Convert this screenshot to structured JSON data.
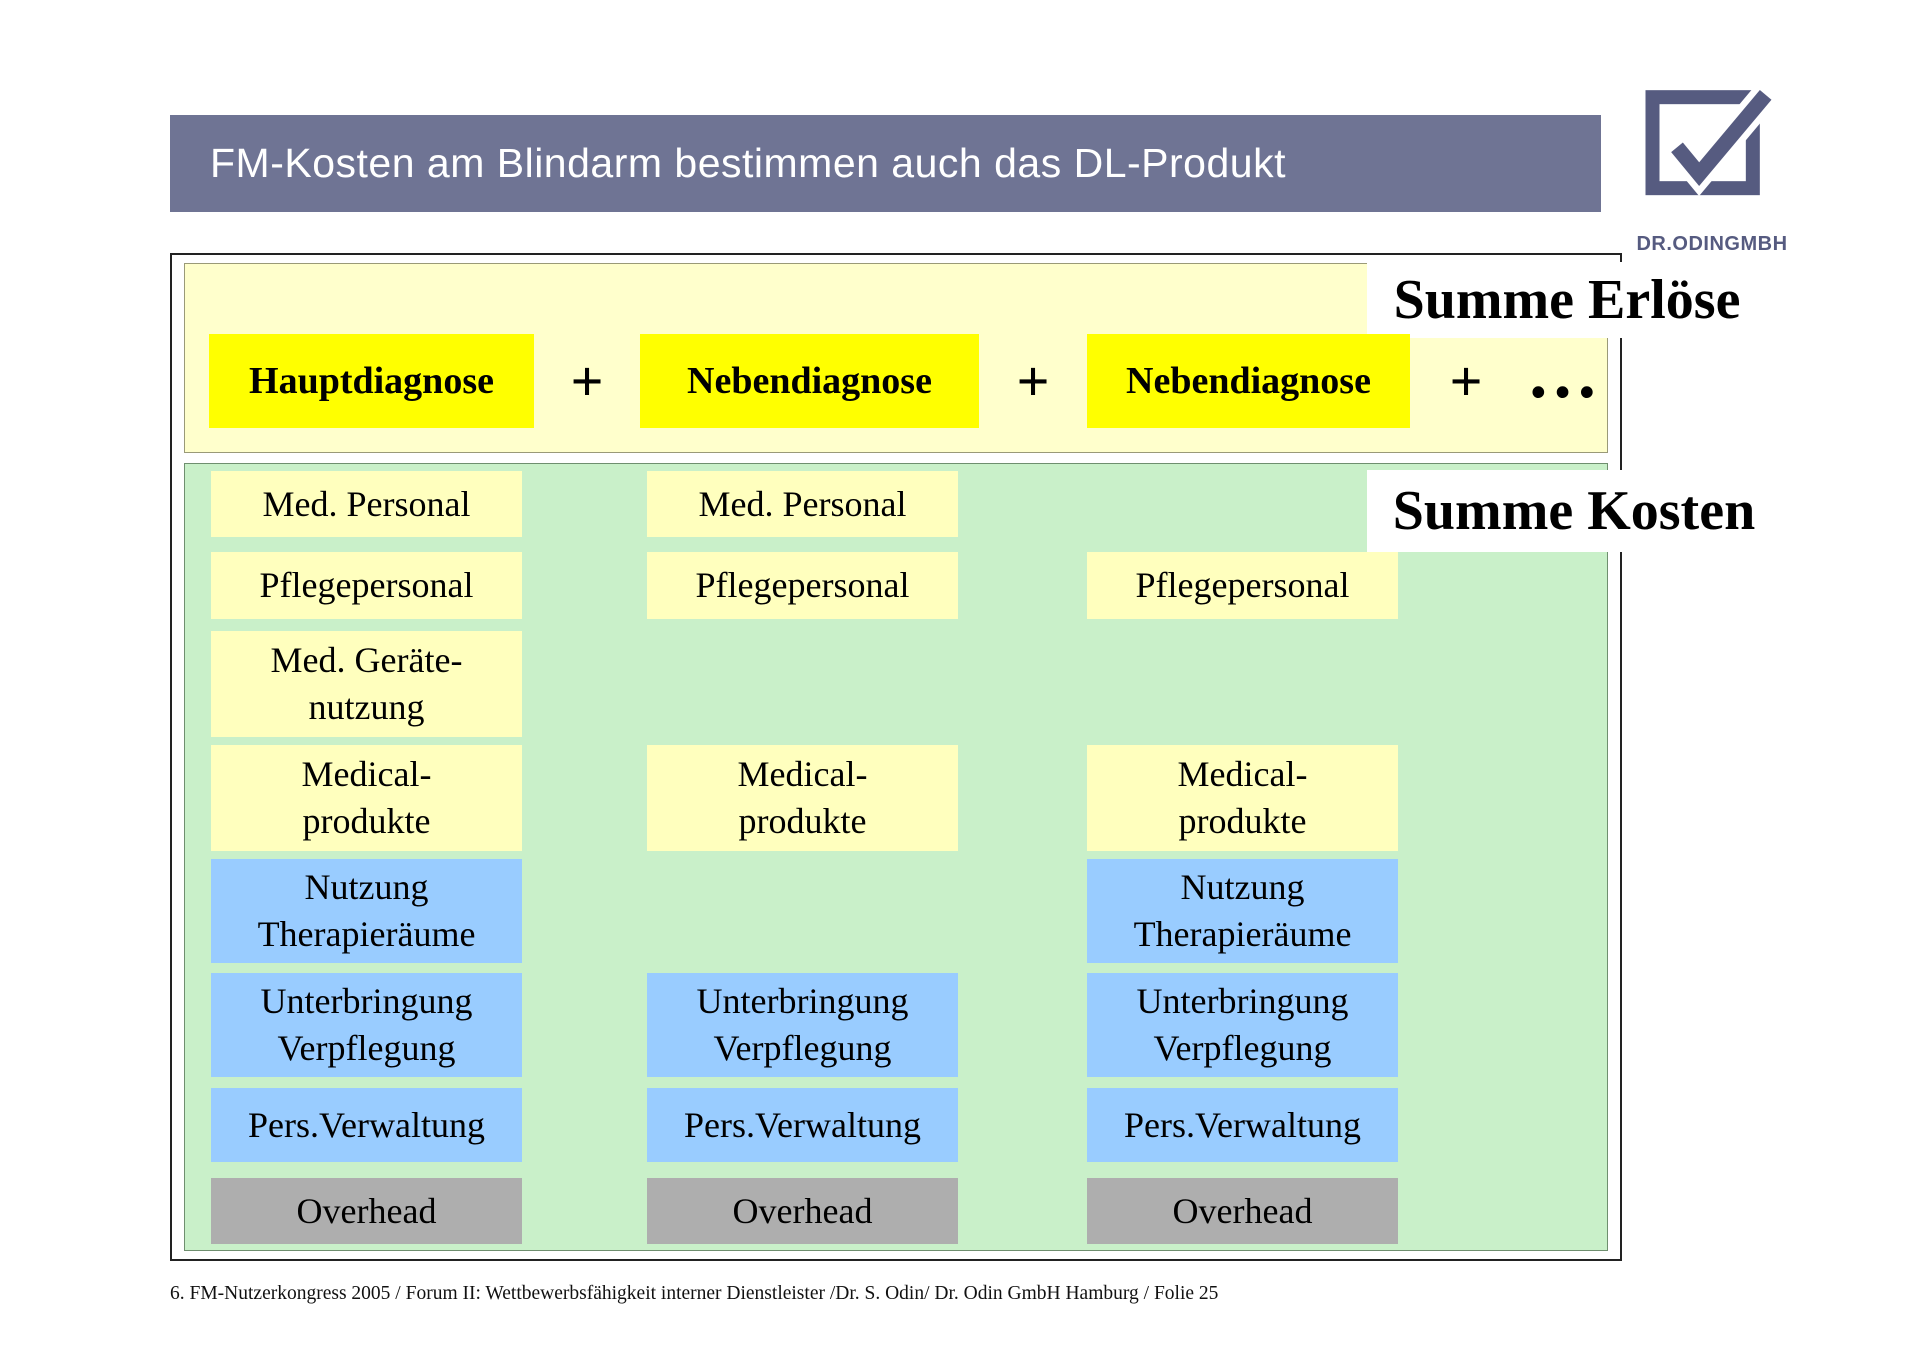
{
  "slide": {
    "title": "FM-Kosten am Blindarm bestimmen auch das DL-Produkt",
    "footer": "6. FM-Nutzerkongress 2005 / Forum II: Wettbewerbsfähigkeit interner Dienstleister /Dr. S. Odin/ Dr. Odin GmbH Hamburg / Folie 25"
  },
  "logo": {
    "icon": "checkmark-square-icon",
    "text": "DR.ODINGMBH"
  },
  "revenue": {
    "summary_label": "Summe Erlöse",
    "plus": "+",
    "ellipsis": "…",
    "diagnoses": [
      {
        "label": "Hauptdiagnose"
      },
      {
        "label": "Nebendiagnose"
      },
      {
        "label": "Nebendiagnose"
      }
    ]
  },
  "costs": {
    "summary_label": "Summe Kosten",
    "columns": [
      {
        "blocks": [
          {
            "lines": [
              "Med. Personal"
            ],
            "category": "yellow"
          },
          {
            "lines": [
              "Pflegepersonal"
            ],
            "category": "yellow"
          },
          {
            "lines": [
              "Med. Geräte-",
              "nutzung"
            ],
            "category": "yellow"
          },
          {
            "lines": [
              "Medical-",
              "produkte"
            ],
            "category": "yellow"
          },
          {
            "lines": [
              "Nutzung",
              "Therapieräume"
            ],
            "category": "blue"
          },
          {
            "lines": [
              "Unterbringung",
              "Verpflegung"
            ],
            "category": "blue"
          },
          {
            "lines": [
              "Pers.Verwaltung"
            ],
            "category": "blue"
          },
          {
            "lines": [
              "Overhead"
            ],
            "category": "gray"
          }
        ]
      },
      {
        "blocks": [
          {
            "lines": [
              "Med. Personal"
            ],
            "category": "yellow"
          },
          {
            "lines": [
              "Pflegepersonal"
            ],
            "category": "yellow"
          },
          {
            "lines": [
              "Medical-",
              "produkte"
            ],
            "category": "yellow"
          },
          {
            "lines": [
              "Unterbringung",
              "Verpflegung"
            ],
            "category": "blue"
          },
          {
            "lines": [
              "Pers.Verwaltung"
            ],
            "category": "blue"
          },
          {
            "lines": [
              "Overhead"
            ],
            "category": "gray"
          }
        ]
      },
      {
        "blocks": [
          {
            "lines": [
              "Pflegepersonal"
            ],
            "category": "yellow"
          },
          {
            "lines": [
              "Medical-",
              "produkte"
            ],
            "category": "yellow"
          },
          {
            "lines": [
              "Nutzung",
              "Therapieräume"
            ],
            "category": "blue"
          },
          {
            "lines": [
              "Unterbringung",
              "Verpflegung"
            ],
            "category": "blue"
          },
          {
            "lines": [
              "Pers.Verwaltung"
            ],
            "category": "blue"
          },
          {
            "lines": [
              "Overhead"
            ],
            "category": "gray"
          }
        ]
      }
    ]
  },
  "colors": {
    "title_bar": "#6f7494",
    "diagnosis_yellow": "#ffff00",
    "revenue_panel_cream": "#ffffcc",
    "cost_panel_green": "#c9f0c9",
    "cost_yellow": "#ffffbe",
    "cost_blue": "#99ccff",
    "cost_gray": "#aeaeae",
    "logo_slate": "#565b80"
  }
}
